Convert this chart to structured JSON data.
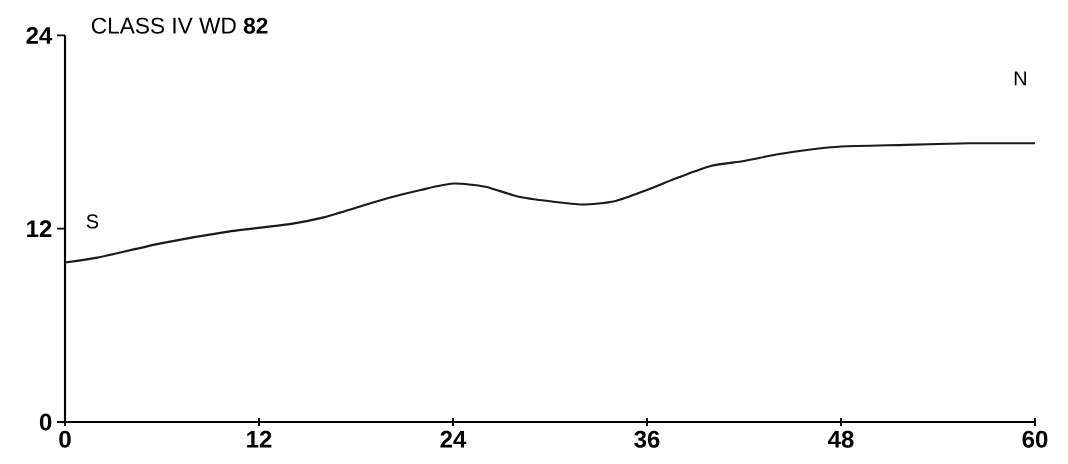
{
  "chart_data": {
    "type": "line",
    "title": "CLASS IV   WD **82**",
    "x": [
      0,
      2,
      6,
      10,
      14,
      16,
      18,
      20,
      22,
      24,
      26,
      28,
      30,
      32,
      34,
      36,
      38,
      40,
      42,
      44,
      46,
      48,
      52,
      56,
      60
    ],
    "values": [
      9.9,
      10.2,
      11.1,
      11.8,
      12.3,
      12.7,
      13.3,
      13.9,
      14.4,
      14.8,
      14.6,
      14.0,
      13.7,
      13.5,
      13.7,
      14.4,
      15.2,
      15.9,
      16.2,
      16.6,
      16.9,
      17.1,
      17.2,
      17.3,
      17.3
    ],
    "color": "#1a1a1a",
    "xlim": [
      0,
      60
    ],
    "ylim": [
      0,
      24
    ],
    "xticks": [
      0,
      12,
      24,
      36,
      48,
      60
    ],
    "yticks": [
      0,
      12,
      24
    ],
    "annotations": [
      {
        "text": "S",
        "x": 0,
        "y": 9.9
      },
      {
        "text": "N",
        "x": 60,
        "y": 17.3
      }
    ]
  }
}
